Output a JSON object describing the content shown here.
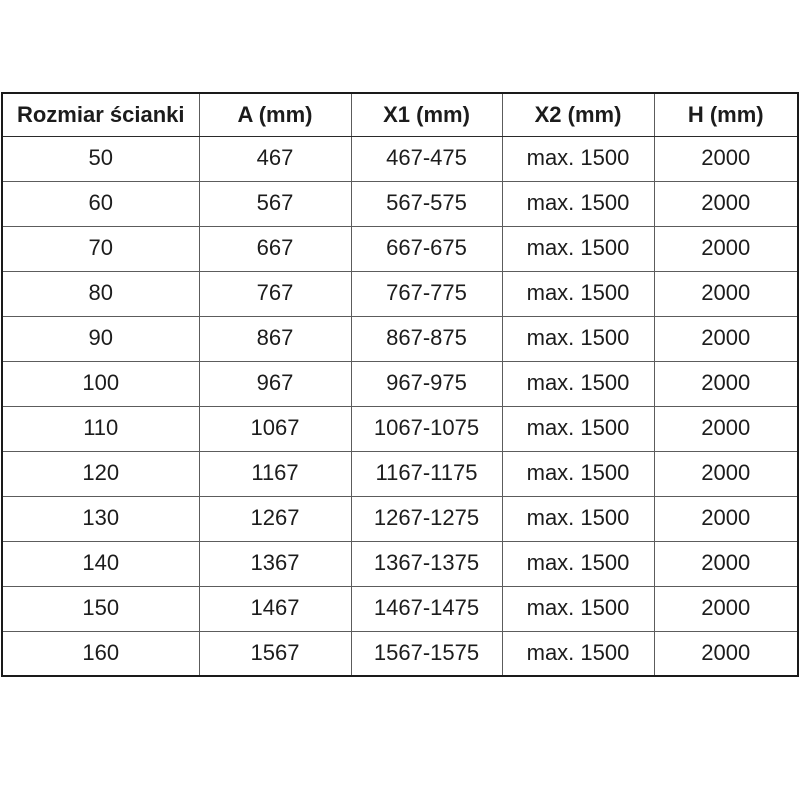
{
  "colors": {
    "background": "#ffffff",
    "text": "#1c1c1c",
    "border_outer": "#1a1a1a",
    "border_inner": "#5c5c5c"
  },
  "table": {
    "headers": [
      "Rozmiar ścianki",
      "A (mm)",
      "X1 (mm)",
      "X2 (mm)",
      "H (mm)"
    ],
    "rows": [
      [
        "50",
        "467",
        "467-475",
        "max. 1500",
        "2000"
      ],
      [
        "60",
        "567",
        "567-575",
        "max. 1500",
        "2000"
      ],
      [
        "70",
        "667",
        "667-675",
        "max. 1500",
        "2000"
      ],
      [
        "80",
        "767",
        "767-775",
        "max. 1500",
        "2000"
      ],
      [
        "90",
        "867",
        "867-875",
        "max. 1500",
        "2000"
      ],
      [
        "100",
        "967",
        "967-975",
        "max. 1500",
        "2000"
      ],
      [
        "110",
        "1067",
        "1067-1075",
        "max. 1500",
        "2000"
      ],
      [
        "120",
        "1167",
        "1167-1175",
        "max. 1500",
        "2000"
      ],
      [
        "130",
        "1267",
        "1267-1275",
        "max. 1500",
        "2000"
      ],
      [
        "140",
        "1367",
        "1367-1375",
        "max. 1500",
        "2000"
      ],
      [
        "150",
        "1467",
        "1467-1475",
        "max. 1500",
        "2000"
      ],
      [
        "160",
        "1567",
        "1567-1575",
        "max. 1500",
        "2000"
      ]
    ]
  },
  "chart_data": {
    "type": "table",
    "title": "",
    "columns": [
      "Rozmiar ścianki",
      "A (mm)",
      "X1 (mm)",
      "X2 (mm)",
      "H (mm)"
    ],
    "rows": [
      [
        "50",
        "467",
        "467-475",
        "max. 1500",
        "2000"
      ],
      [
        "60",
        "567",
        "567-575",
        "max. 1500",
        "2000"
      ],
      [
        "70",
        "667",
        "667-675",
        "max. 1500",
        "2000"
      ],
      [
        "80",
        "767",
        "767-775",
        "max. 1500",
        "2000"
      ],
      [
        "90",
        "867",
        "867-875",
        "max. 1500",
        "2000"
      ],
      [
        "100",
        "967",
        "967-975",
        "max. 1500",
        "2000"
      ],
      [
        "110",
        "1067",
        "1067-1075",
        "max. 1500",
        "2000"
      ],
      [
        "120",
        "1167",
        "1167-1175",
        "max. 1500",
        "2000"
      ],
      [
        "130",
        "1267",
        "1267-1275",
        "max. 1500",
        "2000"
      ],
      [
        "140",
        "1367",
        "1367-1375",
        "max. 1500",
        "2000"
      ],
      [
        "150",
        "1467",
        "1467-1475",
        "max. 1500",
        "2000"
      ],
      [
        "160",
        "1567",
        "1567-1575",
        "max. 1500",
        "2000"
      ]
    ]
  }
}
